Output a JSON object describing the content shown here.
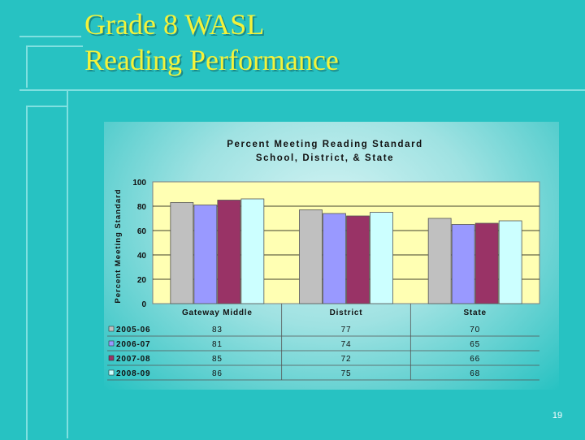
{
  "slide": {
    "title_line1": "Grade 8 WASL",
    "title_line2": "Reading Performance",
    "page_number": "19"
  },
  "colors": {
    "background": "#27c2c2",
    "title": "#f4f23a",
    "plot_area": "#ffffb3",
    "series": [
      "#c0c0c0",
      "#9999ff",
      "#993366",
      "#ccffff"
    ]
  },
  "chart_data": {
    "type": "bar",
    "title": "Percent Meeting Reading Standard",
    "subtitle": "School, District, & State",
    "ylabel": "Percent Meeting Standard",
    "xlabel": "",
    "ylim": [
      0,
      100
    ],
    "yticks": [
      "0",
      "20",
      "40",
      "60",
      "80",
      "100"
    ],
    "grid": true,
    "categories": [
      "Gateway Middle",
      "District",
      "State"
    ],
    "series": [
      {
        "name": "2005-06",
        "values": [
          83,
          77,
          70
        ]
      },
      {
        "name": "2006-07",
        "values": [
          81,
          74,
          65
        ]
      },
      {
        "name": "2007-08",
        "values": [
          85,
          72,
          66
        ]
      },
      {
        "name": "2008-09",
        "values": [
          86,
          75,
          68
        ]
      }
    ],
    "data_table": true
  }
}
